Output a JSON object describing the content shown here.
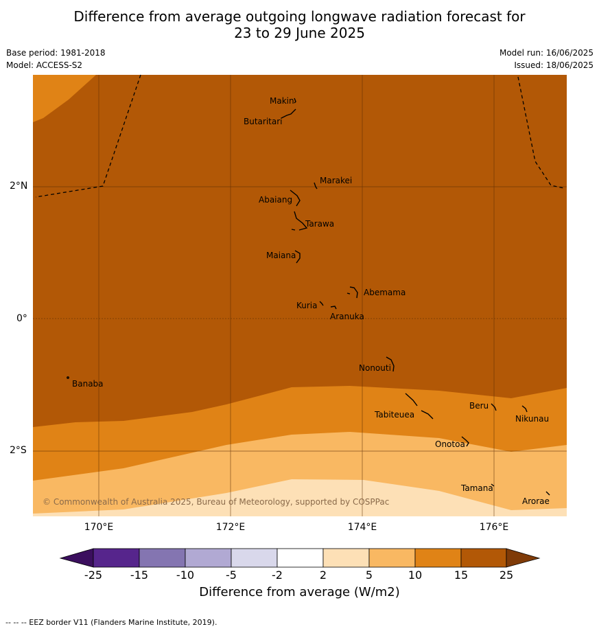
{
  "title_line1": "Difference from average outgoing longwave radiation forecast for",
  "title_line2": "23 to 29 June 2025",
  "meta": {
    "base_period": "Base period: 1981-2018",
    "model": "Model: ACCESS-S2",
    "model_run": "Model run: 16/06/2025",
    "issued": "Issued: 18/06/2025"
  },
  "axes": {
    "lat_labels": [
      "2°N",
      "0°",
      "2°S"
    ],
    "lon_labels": [
      "170°E",
      "172°E",
      "174°E",
      "176°E"
    ]
  },
  "places": [
    {
      "name": "Makin"
    },
    {
      "name": "Butaritari"
    },
    {
      "name": "Marakei"
    },
    {
      "name": "Abaiang"
    },
    {
      "name": "Tarawa"
    },
    {
      "name": "Maiana"
    },
    {
      "name": "Abemama"
    },
    {
      "name": "Kuria"
    },
    {
      "name": "Aranuka"
    },
    {
      "name": "Nonouti"
    },
    {
      "name": "Banaba"
    },
    {
      "name": "Tabiteuea"
    },
    {
      "name": "Beru"
    },
    {
      "name": "Nikunau"
    },
    {
      "name": "Onotoa"
    },
    {
      "name": "Tamana"
    },
    {
      "name": "Arorae"
    }
  ],
  "copyright": "© Commonwealth of Australia 2025, Bureau of Meteorology, supported by COSPPac",
  "colorbar": {
    "title": "Difference from average (W/m2)",
    "ticks": [
      "-25",
      "-15",
      "-10",
      "-5",
      "-2",
      "2",
      "5",
      "10",
      "15",
      "25"
    ],
    "colors": [
      "#3b0f5e",
      "#56258c",
      "#8475b1",
      "#b1a9d3",
      "#d9d8eb",
      "#ffffff",
      "#fde0b6",
      "#f9b862",
      "#e08316",
      "#b25806",
      "#7f3b08"
    ]
  },
  "footer": "--  --  -- EEZ border V11 (Flanders Marine Institute, 2019)."
}
